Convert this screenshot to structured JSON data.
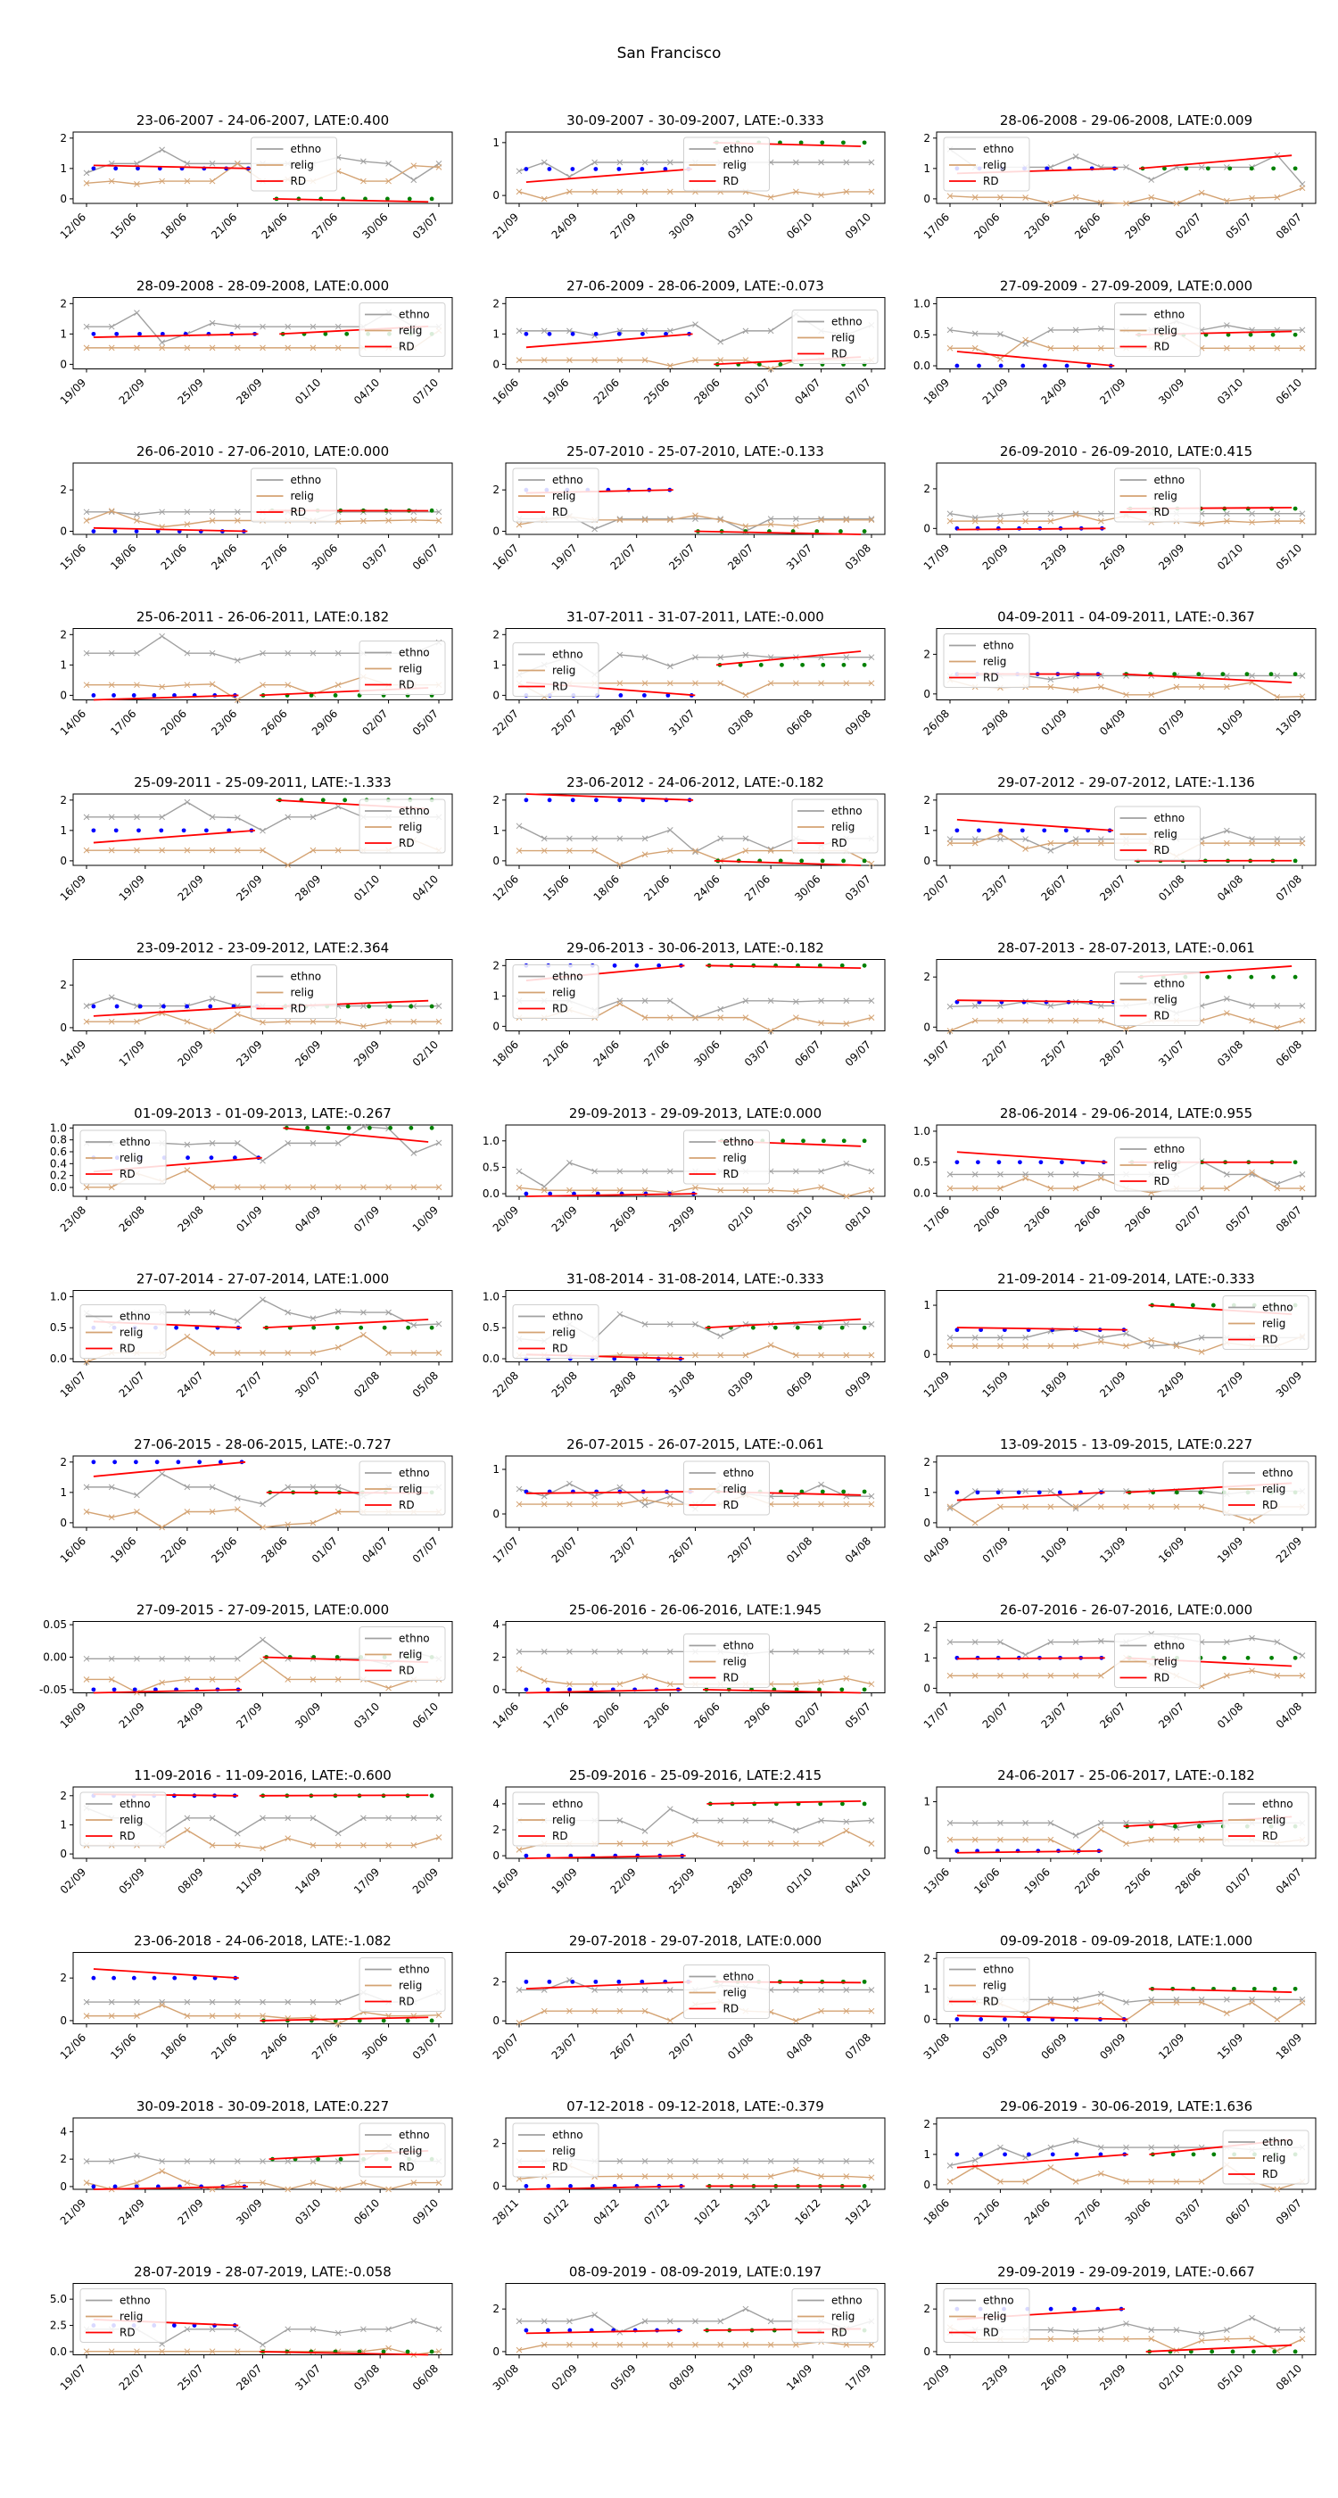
{
  "figure": {
    "suptitle": "San Francisco"
  },
  "legend_labels": [
    "ethno",
    "relig",
    "RD"
  ],
  "colors": {
    "ethno": "#a0a0a0",
    "relig": "#d4a373",
    "rd": "#ff0000",
    "pre_dots": "#0000ff",
    "post_dots": "#008000"
  },
  "chart_data": [
    {
      "type": "line",
      "title": "23-06-2007 - 24-06-2007, LATE:0.400",
      "ylim": [
        -0.15,
        2.2
      ],
      "yticks": [
        "0",
        "1",
        "2"
      ],
      "xticks": [
        "12/06",
        "15/06",
        "18/06",
        "21/06",
        "24/06",
        "27/06",
        "30/06",
        "03/07"
      ],
      "legend": "top-center"
    },
    {
      "type": "line",
      "title": "30-09-2007 - 30-09-2007, LATE:-0.333",
      "ylim": [
        -0.15,
        1.2
      ],
      "yticks": [
        "0",
        "1"
      ],
      "xticks": [
        "21/09",
        "24/09",
        "27/09",
        "30/09",
        "03/10",
        "06/10",
        "09/10"
      ],
      "legend": "top-center"
    },
    {
      "type": "line",
      "title": "28-06-2008 - 29-06-2008, LATE:0.009",
      "ylim": [
        -0.15,
        2.2
      ],
      "yticks": [
        "0",
        "1",
        "2"
      ],
      "xticks": [
        "17/06",
        "20/06",
        "23/06",
        "26/06",
        "29/06",
        "02/07",
        "05/07",
        "08/07"
      ],
      "legend": "top-left"
    },
    {
      "type": "line",
      "title": "28-09-2008 - 28-09-2008, LATE:0.000",
      "ylim": [
        -0.15,
        2.2
      ],
      "yticks": [
        "0",
        "1",
        "2"
      ],
      "xticks": [
        "19/09",
        "22/09",
        "25/09",
        "28/09",
        "01/10",
        "04/10",
        "07/10"
      ],
      "legend": "top-right"
    },
    {
      "type": "line",
      "title": "27-06-2009 - 28-06-2009, LATE:-0.073",
      "ylim": [
        -0.15,
        2.2
      ],
      "yticks": [
        "0",
        "1",
        "2"
      ],
      "xticks": [
        "16/06",
        "19/06",
        "22/06",
        "25/06",
        "28/06",
        "01/07",
        "04/07",
        "07/07"
      ],
      "legend": "center-right"
    },
    {
      "type": "line",
      "title": "27-09-2009 - 27-09-2009, LATE:0.000",
      "ylim": [
        -0.05,
        1.1
      ],
      "yticks": [
        "0.0",
        "0.5",
        "1.0"
      ],
      "xticks": [
        "18/09",
        "21/09",
        "24/09",
        "27/09",
        "30/09",
        "03/10",
        "06/10"
      ],
      "legend": "top-center"
    },
    {
      "type": "line",
      "title": "26-06-2010 - 27-06-2010, LATE:0.000",
      "ylim": [
        -0.15,
        3.3
      ],
      "yticks": [
        "0",
        "2"
      ],
      "xticks": [
        "15/06",
        "18/06",
        "21/06",
        "24/06",
        "27/06",
        "30/06",
        "03/07",
        "06/07"
      ],
      "legend": "top-center"
    },
    {
      "type": "line",
      "title": "25-07-2010 - 25-07-2010, LATE:-0.133",
      "ylim": [
        -0.15,
        3.3
      ],
      "yticks": [
        "0",
        "2"
      ],
      "xticks": [
        "16/07",
        "19/07",
        "22/07",
        "25/07",
        "28/07",
        "31/07",
        "03/08"
      ],
      "legend": "top-left"
    },
    {
      "type": "line",
      "title": "26-09-2010 - 26-09-2010, LATE:0.415",
      "ylim": [
        -0.3,
        3.3
      ],
      "yticks": [
        "0",
        "2"
      ],
      "xticks": [
        "17/09",
        "20/09",
        "23/09",
        "26/09",
        "29/09",
        "02/10",
        "05/10"
      ],
      "legend": "top-center"
    },
    {
      "type": "line",
      "title": "25-06-2011 - 26-06-2011, LATE:0.182",
      "ylim": [
        -0.15,
        2.2
      ],
      "yticks": [
        "0",
        "1",
        "2"
      ],
      "xticks": [
        "14/06",
        "17/06",
        "20/06",
        "23/06",
        "26/06",
        "29/06",
        "02/07",
        "05/07"
      ],
      "legend": "center-right"
    },
    {
      "type": "line",
      "title": "31-07-2011 - 31-07-2011, LATE:-0.000",
      "ylim": [
        -0.15,
        2.2
      ],
      "yticks": [
        "0",
        "1",
        "2"
      ],
      "xticks": [
        "22/07",
        "25/07",
        "28/07",
        "31/07",
        "03/08",
        "06/08",
        "09/08"
      ],
      "legend": "bottom-left"
    },
    {
      "type": "line",
      "title": "04-09-2011 - 04-09-2011, LATE:-0.367",
      "ylim": [
        -0.3,
        3.3
      ],
      "yticks": [
        "0",
        "2"
      ],
      "xticks": [
        "26/08",
        "29/08",
        "01/09",
        "04/09",
        "07/09",
        "10/09",
        "13/09"
      ],
      "legend": "top-left"
    },
    {
      "type": "line",
      "title": "25-09-2011 - 25-09-2011, LATE:-1.333",
      "ylim": [
        -0.15,
        2.2
      ],
      "yticks": [
        "0",
        "1",
        "2"
      ],
      "xticks": [
        "16/09",
        "19/09",
        "22/09",
        "25/09",
        "28/09",
        "01/10",
        "04/10"
      ],
      "legend": "top-right"
    },
    {
      "type": "line",
      "title": "23-06-2012 - 24-06-2012, LATE:-0.182",
      "ylim": [
        -0.15,
        2.2
      ],
      "yticks": [
        "0",
        "1",
        "2"
      ],
      "xticks": [
        "12/06",
        "15/06",
        "18/06",
        "21/06",
        "24/06",
        "27/06",
        "30/06",
        "03/07"
      ],
      "legend": "top-right"
    },
    {
      "type": "line",
      "title": "29-07-2012 - 29-07-2012, LATE:-1.136",
      "ylim": [
        -0.15,
        2.2
      ],
      "yticks": [
        "0",
        "1",
        "2"
      ],
      "xticks": [
        "20/07",
        "23/07",
        "26/07",
        "29/07",
        "01/08",
        "04/08",
        "07/08"
      ],
      "legend": "center"
    },
    {
      "type": "line",
      "title": "23-09-2012 - 23-09-2012, LATE:2.364",
      "ylim": [
        -0.15,
        3.2
      ],
      "yticks": [
        "0",
        "2"
      ],
      "xticks": [
        "14/09",
        "17/09",
        "20/09",
        "23/09",
        "26/09",
        "29/09",
        "02/10"
      ],
      "legend": "top-center"
    },
    {
      "type": "line",
      "title": "29-06-2013 - 30-06-2013, LATE:-0.182",
      "ylim": [
        -0.15,
        2.2
      ],
      "yticks": [
        "0",
        "1",
        "2"
      ],
      "xticks": [
        "18/06",
        "21/06",
        "24/06",
        "27/06",
        "30/06",
        "03/07",
        "06/07",
        "09/07"
      ],
      "legend": "top-left"
    },
    {
      "type": "line",
      "title": "28-07-2013 - 28-07-2013, LATE:-0.061",
      "ylim": [
        -0.15,
        2.7
      ],
      "yticks": [
        "0",
        "2"
      ],
      "xticks": [
        "19/07",
        "22/07",
        "25/07",
        "28/07",
        "31/07",
        "03/08",
        "06/08"
      ],
      "legend": "center"
    },
    {
      "type": "line",
      "title": "01-09-2013 - 01-09-2013, LATE:-0.267",
      "ylim": [
        -0.15,
        1.05
      ],
      "yticks": [
        "0.0",
        "0.2",
        "0.4",
        "0.6",
        "0.8",
        "1.0"
      ],
      "xticks": [
        "23/08",
        "26/08",
        "29/08",
        "01/09",
        "04/09",
        "07/09",
        "10/09"
      ],
      "legend": "top-left"
    },
    {
      "type": "line",
      "title": "29-09-2013 - 29-09-2013, LATE:0.000",
      "ylim": [
        -0.05,
        1.3
      ],
      "yticks": [
        "0.0",
        "0.5",
        "1.0"
      ],
      "xticks": [
        "20/09",
        "23/09",
        "26/09",
        "29/09",
        "02/10",
        "05/10",
        "08/10"
      ],
      "legend": "top-center"
    },
    {
      "type": "line",
      "title": "28-06-2014 - 29-06-2014, LATE:0.955",
      "ylim": [
        -0.05,
        1.1
      ],
      "yticks": [
        "0.0",
        "0.5",
        "1.0"
      ],
      "xticks": [
        "17/06",
        "20/06",
        "23/06",
        "26/06",
        "29/06",
        "02/07",
        "05/07",
        "08/07"
      ],
      "legend": "center"
    },
    {
      "type": "line",
      "title": "27-07-2014 - 27-07-2014, LATE:1.000",
      "ylim": [
        -0.05,
        1.1
      ],
      "yticks": [
        "0.0",
        "0.5",
        "1.0"
      ],
      "xticks": [
        "18/07",
        "21/07",
        "24/07",
        "27/07",
        "30/07",
        "02/08",
        "05/08"
      ],
      "legend": "bottom-left"
    },
    {
      "type": "line",
      "title": "31-08-2014 - 31-08-2014, LATE:-0.333",
      "ylim": [
        -0.05,
        1.1
      ],
      "yticks": [
        "0.0",
        "0.5",
        "1.0"
      ],
      "xticks": [
        "22/08",
        "25/08",
        "28/08",
        "31/08",
        "03/09",
        "06/09",
        "09/09"
      ],
      "legend": "bottom-left"
    },
    {
      "type": "line",
      "title": "21-09-2014 - 21-09-2014, LATE:-0.333",
      "ylim": [
        -0.15,
        1.3
      ],
      "yticks": [
        "0",
        "1"
      ],
      "xticks": [
        "12/09",
        "15/09",
        "18/09",
        "21/09",
        "24/09",
        "27/09",
        "30/09"
      ],
      "legend": "top-right"
    },
    {
      "type": "line",
      "title": "27-06-2015 - 28-06-2015, LATE:-0.727",
      "ylim": [
        -0.15,
        2.2
      ],
      "yticks": [
        "0",
        "1",
        "2"
      ],
      "xticks": [
        "16/06",
        "19/06",
        "22/06",
        "25/06",
        "28/06",
        "01/07",
        "04/07",
        "07/07"
      ],
      "legend": "top-right"
    },
    {
      "type": "line",
      "title": "26-07-2015 - 26-07-2015, LATE:-0.061",
      "ylim": [
        -0.3,
        1.3
      ],
      "yticks": [
        "0",
        "1"
      ],
      "xticks": [
        "17/07",
        "20/07",
        "23/07",
        "26/07",
        "29/07",
        "01/08",
        "04/08"
      ],
      "legend": "top-center"
    },
    {
      "type": "line",
      "title": "13-09-2015 - 13-09-2015, LATE:0.227",
      "ylim": [
        -0.15,
        2.2
      ],
      "yticks": [
        "0",
        "1",
        "2"
      ],
      "xticks": [
        "04/09",
        "07/09",
        "10/09",
        "13/09",
        "16/09",
        "19/09",
        "22/09"
      ],
      "legend": "top-right"
    },
    {
      "type": "line",
      "title": "27-09-2015 - 27-09-2015, LATE:0.000",
      "ylim": [
        -0.055,
        0.055
      ],
      "yticks": [
        "-0.05",
        "0.00",
        "0.05"
      ],
      "xticks": [
        "18/09",
        "21/09",
        "24/09",
        "27/09",
        "30/09",
        "03/10",
        "06/10"
      ],
      "legend": "top-right"
    },
    {
      "type": "line",
      "title": "25-06-2016 - 26-06-2016, LATE:1.945",
      "ylim": [
        -0.2,
        4.2
      ],
      "yticks": [
        "0",
        "2",
        "4"
      ],
      "xticks": [
        "14/06",
        "17/06",
        "20/06",
        "23/06",
        "26/06",
        "29/06",
        "02/07",
        "05/07"
      ],
      "legend": "center"
    },
    {
      "type": "line",
      "title": "26-07-2016 - 26-07-2016, LATE:0.000",
      "ylim": [
        -0.15,
        2.2
      ],
      "yticks": [
        "0",
        "1",
        "2"
      ],
      "xticks": [
        "17/07",
        "20/07",
        "23/07",
        "26/07",
        "29/07",
        "01/08",
        "04/08"
      ],
      "legend": "center"
    },
    {
      "type": "line",
      "title": "11-09-2016 - 11-09-2016, LATE:-0.600",
      "ylim": [
        -0.15,
        2.3
      ],
      "yticks": [
        "0",
        "1",
        "2"
      ],
      "xticks": [
        "02/09",
        "05/09",
        "08/09",
        "11/09",
        "14/09",
        "17/09",
        "20/09"
      ],
      "legend": "top-left"
    },
    {
      "type": "line",
      "title": "25-09-2016 - 25-09-2016, LATE:2.415",
      "ylim": [
        -0.2,
        5.3
      ],
      "yticks": [
        "0",
        "2",
        "4"
      ],
      "xticks": [
        "16/09",
        "19/09",
        "22/09",
        "25/09",
        "28/09",
        "01/10",
        "04/10"
      ],
      "legend": "top-left"
    },
    {
      "type": "line",
      "title": "24-06-2017 - 25-06-2017, LATE:-0.182",
      "ylim": [
        -0.15,
        1.3
      ],
      "yticks": [
        "0",
        "1"
      ],
      "xticks": [
        "13/06",
        "16/06",
        "19/06",
        "22/06",
        "25/06",
        "28/06",
        "01/07",
        "04/07"
      ],
      "legend": "top-right"
    },
    {
      "type": "line",
      "title": "23-06-2018 - 24-06-2018, LATE:-1.082",
      "ylim": [
        -0.15,
        3.2
      ],
      "yticks": [
        "0",
        "2"
      ],
      "xticks": [
        "12/06",
        "15/06",
        "18/06",
        "21/06",
        "24/06",
        "27/06",
        "30/06",
        "03/07"
      ],
      "legend": "top-right"
    },
    {
      "type": "line",
      "title": "29-07-2018 - 29-07-2018, LATE:0.000",
      "ylim": [
        -0.15,
        3.5
      ],
      "yticks": [
        "0",
        "2"
      ],
      "xticks": [
        "20/07",
        "23/07",
        "26/07",
        "29/07",
        "01/08",
        "04/08",
        "07/08"
      ],
      "legend": "center"
    },
    {
      "type": "line",
      "title": "09-09-2018 - 09-09-2018, LATE:1.000",
      "ylim": [
        -0.15,
        2.2
      ],
      "yticks": [
        "0",
        "1",
        "2"
      ],
      "xticks": [
        "31/08",
        "03/09",
        "06/09",
        "09/09",
        "12/09",
        "15/09",
        "18/09"
      ],
      "legend": "top-left"
    },
    {
      "type": "line",
      "title": "30-09-2018 - 30-09-2018, LATE:0.227",
      "ylim": [
        -0.2,
        5.0
      ],
      "yticks": [
        "0",
        "2",
        "4"
      ],
      "xticks": [
        "21/09",
        "24/09",
        "27/09",
        "30/09",
        "03/10",
        "06/10",
        "09/10"
      ],
      "legend": "top-right"
    },
    {
      "type": "line",
      "title": "07-12-2018 - 09-12-2018, LATE:-0.379",
      "ylim": [
        -0.15,
        3.2
      ],
      "yticks": [
        "0",
        "2"
      ],
      "xticks": [
        "28/11",
        "01/12",
        "04/12",
        "07/12",
        "10/12",
        "13/12",
        "16/12",
        "19/12"
      ],
      "legend": "top-left"
    },
    {
      "type": "line",
      "title": "29-06-2019 - 30-06-2019, LATE:1.636",
      "ylim": [
        -0.15,
        2.2
      ],
      "yticks": [
        "0",
        "1",
        "2"
      ],
      "xticks": [
        "18/06",
        "21/06",
        "24/06",
        "27/06",
        "30/06",
        "03/07",
        "06/07",
        "09/07"
      ],
      "legend": "center-right"
    },
    {
      "type": "line",
      "title": "28-07-2019 - 28-07-2019, LATE:-0.058",
      "ylim": [
        -0.3,
        6.5
      ],
      "yticks": [
        "0.0",
        "2.5",
        "5.0"
      ],
      "xticks": [
        "19/07",
        "22/07",
        "25/07",
        "28/07",
        "31/07",
        "03/08",
        "06/08"
      ],
      "legend": "top-left"
    },
    {
      "type": "line",
      "title": "08-09-2019 - 08-09-2019, LATE:0.197",
      "ylim": [
        -0.15,
        3.2
      ],
      "yticks": [
        "0",
        "2"
      ],
      "xticks": [
        "30/08",
        "02/09",
        "05/09",
        "08/09",
        "11/09",
        "14/09",
        "17/09"
      ],
      "legend": "top-right"
    },
    {
      "type": "line",
      "title": "29-09-2019 - 29-09-2019, LATE:-0.667",
      "ylim": [
        -0.15,
        3.2
      ],
      "yticks": [
        "0",
        "2"
      ],
      "xticks": [
        "20/09",
        "23/09",
        "26/09",
        "29/09",
        "02/10",
        "05/10",
        "08/10"
      ],
      "legend": "top-left"
    }
  ]
}
